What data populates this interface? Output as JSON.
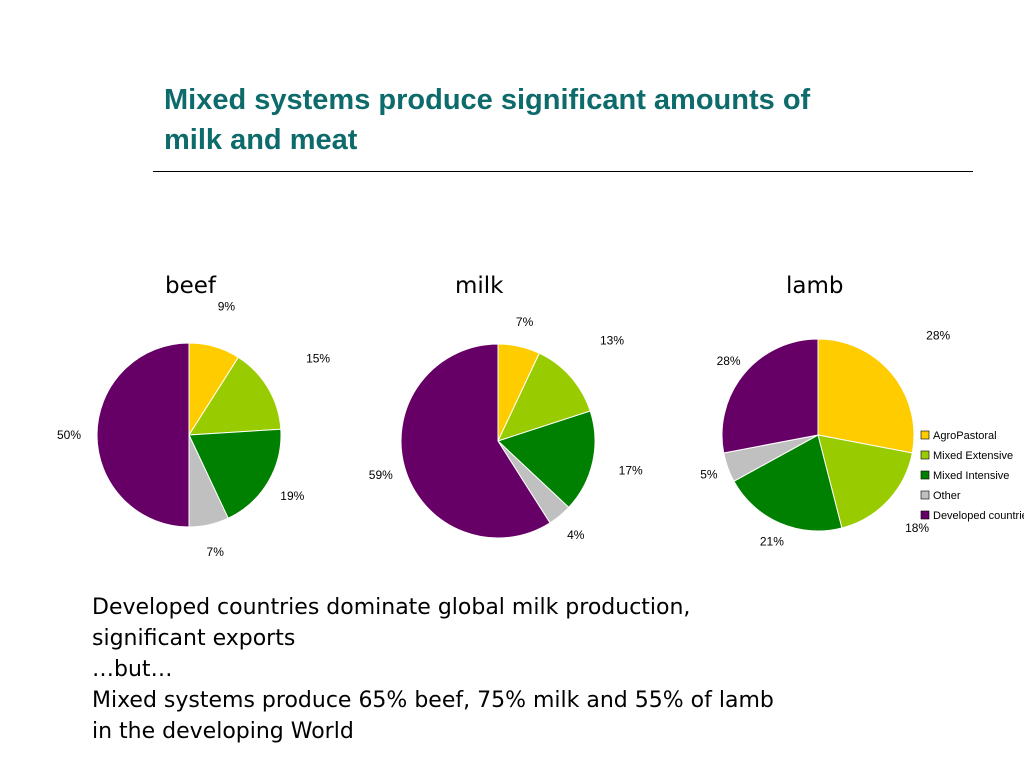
{
  "slide": {
    "title_line1": "Mixed systems produce significant amounts of",
    "title_line2": "milk and meat"
  },
  "body": {
    "lines": [
      "Developed countries dominate global milk production,",
      "significant exports",
      "…but…",
      "Mixed systems produce 65% beef, 75% milk and 55% of lamb",
      "in the developing World"
    ]
  },
  "legend": [
    {
      "label": "AgroPastoral",
      "color": "#ffcc00"
    },
    {
      "label": "Mixed Extensive",
      "color": "#99cc00"
    },
    {
      "label": "Mixed Intensive",
      "color": "#008000"
    },
    {
      "label": "Other",
      "color": "#c0c0c0"
    },
    {
      "label": "Developed countries",
      "color": "#660066"
    }
  ],
  "chart_data": [
    {
      "type": "pie",
      "title": "beef",
      "categories": [
        "AgroPastoral",
        "Mixed Extensive",
        "Mixed Intensive",
        "Other",
        "Developed countries"
      ],
      "values": [
        9,
        15,
        19,
        7,
        50
      ],
      "labels": [
        "9%",
        "15%",
        "19%",
        "7%",
        "50%"
      ]
    },
    {
      "type": "pie",
      "title": "milk",
      "categories": [
        "AgroPastoral",
        "Mixed Extensive",
        "Mixed Intensive",
        "Other",
        "Developed countries"
      ],
      "values": [
        7,
        13,
        17,
        4,
        59
      ],
      "labels": [
        "7%",
        "13%",
        "17%",
        "4%",
        "59%"
      ]
    },
    {
      "type": "pie",
      "title": "lamb",
      "categories": [
        "AgroPastoral",
        "Mixed Extensive",
        "Mixed Intensive",
        "Other",
        "Developed countries"
      ],
      "values": [
        28,
        18,
        21,
        5,
        28
      ],
      "labels": [
        "28%",
        "18%",
        "21%",
        "5%",
        "28%"
      ],
      "legend_position": "right"
    }
  ]
}
